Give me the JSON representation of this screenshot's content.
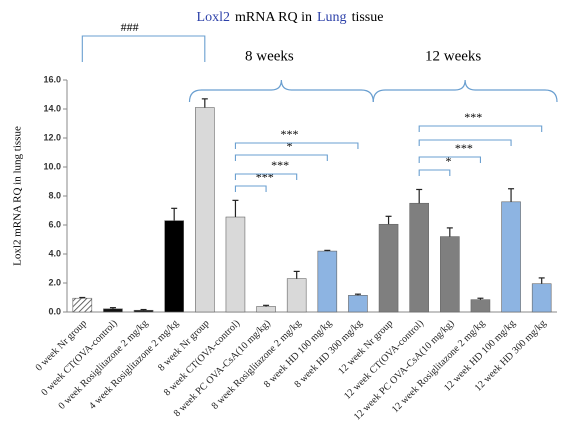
{
  "chart_data": {
    "type": "bar",
    "title_parts": [
      "Loxl2",
      "mRNA  RQ  in",
      "Lung",
      "tissue"
    ],
    "title_colors": [
      "#2b3fa8",
      "#000000",
      "#2b3fa8",
      "#000000"
    ],
    "ylabel": "Loxl2  mRNA  RQ  in lung  tissue",
    "categories": [
      "0 week Nr group",
      "0 week CT(OVA-control)",
      "0 week Rosiglitazone 2 mg/kg",
      "4 week Rosiglitazone 2 mg/kg",
      "8 week Nr group",
      "8 week CT(OVA-control)",
      "8 week PC OVA-CsA(10 mg/kg)",
      "8 week Rosiglitazone 2 mg/kg",
      "8 week HD 100 mg/kg",
      "8 week HD 300 mg/kg",
      "12 week Nr group",
      "12 week CT(OVA-control)",
      "12 week PC OVA-CsA(10 mg/kg)",
      "12 week Rosiglitazone 2 mg/kg",
      "12 week HD 100 mg/kg",
      "12 week HD 300 mg/kg"
    ],
    "values": [
      0.95,
      0.22,
      0.12,
      6.3,
      14.1,
      6.55,
      0.38,
      2.3,
      4.2,
      1.15,
      6.05,
      7.5,
      5.2,
      0.85,
      7.6,
      1.95
    ],
    "errors": [
      0.05,
      0.08,
      0.05,
      0.85,
      0.6,
      1.15,
      0.08,
      0.5,
      0.05,
      0.08,
      0.55,
      0.95,
      0.6,
      0.1,
      0.9,
      0.4
    ],
    "colors": [
      "#ffffff",
      "#111111",
      "#111111",
      "#000000",
      "#d9d9d9",
      "#d9d9d9",
      "#d9d9d9",
      "#d9d9d9",
      "#8db4e2",
      "#8db4e2",
      "#7f7f7f",
      "#7f7f7f",
      "#7f7f7f",
      "#7f7f7f",
      "#8db4e2",
      "#8db4e2"
    ],
    "hatch": [
      true,
      false,
      false,
      false,
      false,
      false,
      false,
      false,
      false,
      false,
      false,
      false,
      false,
      false,
      false,
      false
    ],
    "ylim": [
      0,
      16
    ],
    "yticks": [
      {
        "value": 0,
        "label": "0.0"
      },
      {
        "value": 2,
        "label": "2.0"
      },
      {
        "value": 4,
        "label": "4.0"
      },
      {
        "value": 6,
        "label": "6.0"
      },
      {
        "value": 8,
        "label": "8.0"
      },
      {
        "value": 10,
        "label": "10.0"
      },
      {
        "value": 12,
        "label": "12.0"
      },
      {
        "value": 14,
        "label": "14.0"
      },
      {
        "value": 16,
        "label": "16.0"
      }
    ],
    "groups": [
      {
        "label": "8 weeks",
        "from": 4,
        "to": 9
      },
      {
        "label": "12 weeks",
        "from": 10,
        "to": 15
      }
    ],
    "annotations": [
      {
        "label": "###",
        "from": 0,
        "to": 4
      },
      {
        "label": "***",
        "from": 5,
        "to": 6
      },
      {
        "label": "***",
        "from": 5,
        "to": 7
      },
      {
        "label": "*",
        "from": 5,
        "to": 8
      },
      {
        "label": "***",
        "from": 5,
        "to": 9
      },
      {
        "label": "*",
        "from": 11,
        "to": 12
      },
      {
        "label": "***",
        "from": 11,
        "to": 13
      },
      {
        "from": 11,
        "to": 14
      },
      {
        "label": "***",
        "from": 11,
        "to": 15
      }
    ],
    "annotation_color": "#6a9fd0"
  }
}
